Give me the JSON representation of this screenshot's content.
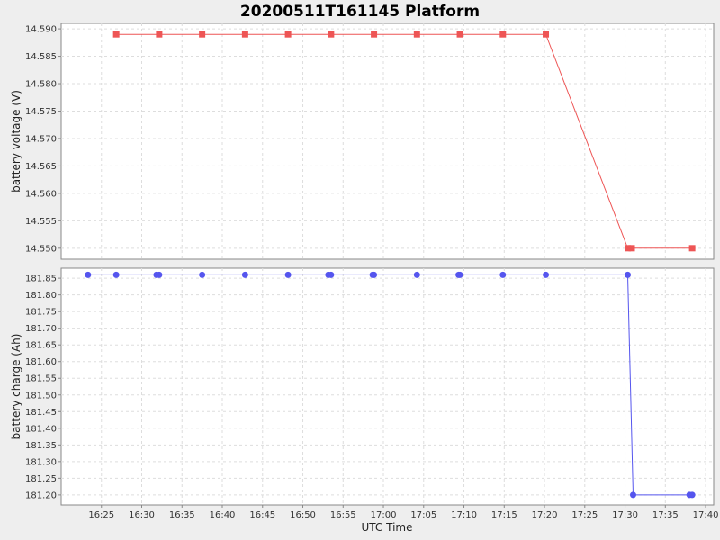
{
  "chart_data": {
    "title": "20200511T161145 Platform",
    "xlabel": "UTC Time",
    "x_ticks": [
      "16:25",
      "16:30",
      "16:35",
      "16:40",
      "16:45",
      "16:50",
      "16:55",
      "17:00",
      "17:05",
      "17:10",
      "17:15",
      "17:20",
      "17:25",
      "17:30",
      "17:35",
      "17:40"
    ],
    "xlim": [
      "16:20:00",
      "17:41:00"
    ],
    "grid": true,
    "subplots": [
      {
        "type": "line",
        "ylabel": "battery voltage (V)",
        "color": "#ee5555",
        "marker": "square",
        "ylim": [
          14.548,
          14.591
        ],
        "y_ticks": [
          "14.550",
          "14.555",
          "14.560",
          "14.565",
          "14.570",
          "14.575",
          "14.580",
          "14.585",
          "14.590"
        ],
        "points": [
          {
            "x": "16:26:50",
            "y": 14.589
          },
          {
            "x": "16:32:10",
            "y": 14.589
          },
          {
            "x": "16:37:30",
            "y": 14.589
          },
          {
            "x": "16:42:50",
            "y": 14.589
          },
          {
            "x": "16:48:10",
            "y": 14.589
          },
          {
            "x": "16:53:30",
            "y": 14.589
          },
          {
            "x": "16:58:50",
            "y": 14.589
          },
          {
            "x": "17:04:10",
            "y": 14.589
          },
          {
            "x": "17:09:30",
            "y": 14.589
          },
          {
            "x": "17:14:50",
            "y": 14.589
          },
          {
            "x": "17:20:10",
            "y": 14.589
          },
          {
            "x": "17:30:20",
            "y": 14.55
          },
          {
            "x": "17:30:50",
            "y": 14.55
          },
          {
            "x": "17:38:20",
            "y": 14.55
          }
        ]
      },
      {
        "type": "line",
        "ylabel": "battery charge (Ah)",
        "color": "#5555ee",
        "marker": "circle",
        "ylim": [
          181.17,
          181.88
        ],
        "y_ticks": [
          "181.20",
          "181.25",
          "181.30",
          "181.35",
          "181.40",
          "181.45",
          "181.50",
          "181.55",
          "181.60",
          "181.65",
          "181.70",
          "181.75",
          "181.80",
          "181.85"
        ],
        "points": [
          {
            "x": "16:23:20",
            "y": 181.86
          },
          {
            "x": "16:26:50",
            "y": 181.86
          },
          {
            "x": "16:31:50",
            "y": 181.86
          },
          {
            "x": "16:32:10",
            "y": 181.86
          },
          {
            "x": "16:37:30",
            "y": 181.86
          },
          {
            "x": "16:42:50",
            "y": 181.86
          },
          {
            "x": "16:48:10",
            "y": 181.86
          },
          {
            "x": "16:53:10",
            "y": 181.86
          },
          {
            "x": "16:53:30",
            "y": 181.86
          },
          {
            "x": "16:58:40",
            "y": 181.86
          },
          {
            "x": "16:58:50",
            "y": 181.86
          },
          {
            "x": "17:04:10",
            "y": 181.86
          },
          {
            "x": "17:09:20",
            "y": 181.86
          },
          {
            "x": "17:09:30",
            "y": 181.86
          },
          {
            "x": "17:14:50",
            "y": 181.86
          },
          {
            "x": "17:20:10",
            "y": 181.86
          },
          {
            "x": "17:30:20",
            "y": 181.86
          },
          {
            "x": "17:31:00",
            "y": 181.2
          },
          {
            "x": "17:38:00",
            "y": 181.2
          },
          {
            "x": "17:38:20",
            "y": 181.2
          }
        ]
      }
    ]
  }
}
